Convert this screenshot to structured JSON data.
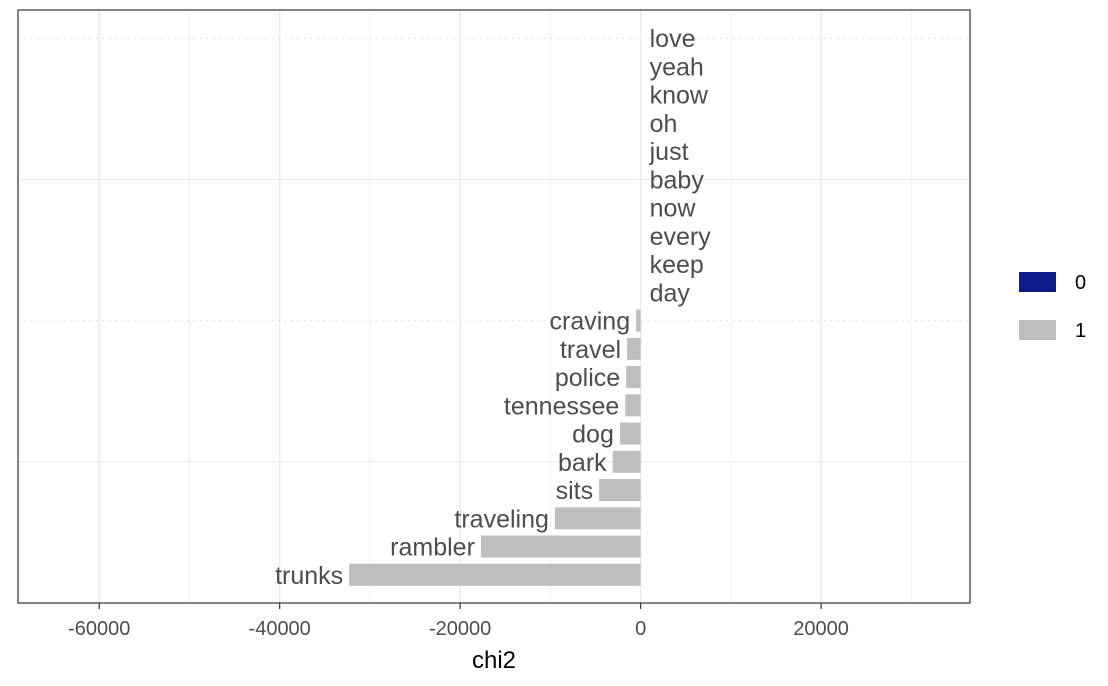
{
  "chart_data": {
    "type": "bar",
    "orientation": "horizontal",
    "xlabel": "chi2",
    "ylabel": "",
    "xlim": [
      -69000,
      36500
    ],
    "x_ticks": [
      -60000,
      -40000,
      -20000,
      0,
      20000
    ],
    "x_tick_labels": [
      "-60000",
      "-40000",
      "-20000",
      "0",
      "20000"
    ],
    "grid": true,
    "legend_position": "right",
    "legend": [
      {
        "label": "0",
        "color": "#0C1A8A"
      },
      {
        "label": "1",
        "color": "#BEBEBE"
      }
    ],
    "bars": [
      {
        "term": "love",
        "value": 0,
        "group": "0"
      },
      {
        "term": "yeah",
        "value": 0,
        "group": "0"
      },
      {
        "term": "know",
        "value": 0,
        "group": "0"
      },
      {
        "term": "oh",
        "value": 0,
        "group": "0"
      },
      {
        "term": "just",
        "value": 0,
        "group": "0"
      },
      {
        "term": "baby",
        "value": 0,
        "group": "0"
      },
      {
        "term": "now",
        "value": 0,
        "group": "0"
      },
      {
        "term": "every",
        "value": 0,
        "group": "0"
      },
      {
        "term": "keep",
        "value": 0,
        "group": "0"
      },
      {
        "term": "day",
        "value": 0,
        "group": "0"
      },
      {
        "term": "craving",
        "value": -500,
        "group": "1"
      },
      {
        "term": "travel",
        "value": -1500,
        "group": "1"
      },
      {
        "term": "police",
        "value": -1600,
        "group": "1"
      },
      {
        "term": "tennessee",
        "value": -1700,
        "group": "1"
      },
      {
        "term": "dog",
        "value": -2300,
        "group": "1"
      },
      {
        "term": "bark",
        "value": -3100,
        "group": "1"
      },
      {
        "term": "sits",
        "value": -4600,
        "group": "1"
      },
      {
        "term": "traveling",
        "value": -9500,
        "group": "1"
      },
      {
        "term": "rambler",
        "value": -17700,
        "group": "1"
      },
      {
        "term": "trunks",
        "value": -32300,
        "group": "1"
      }
    ]
  }
}
